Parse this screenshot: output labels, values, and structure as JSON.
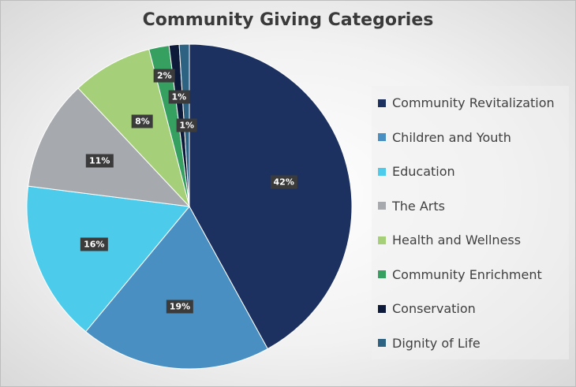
{
  "chart_data": {
    "type": "pie",
    "title": "Community Giving Categories",
    "legend_position": "right",
    "slices": [
      {
        "name": "Community Revitalization",
        "value": 42,
        "label": "42%",
        "color": "#1c3160"
      },
      {
        "name": "Children and Youth",
        "value": 19,
        "label": "19%",
        "color": "#4a8fc2"
      },
      {
        "name": "Education",
        "value": 16,
        "label": "16%",
        "color": "#4dcbea"
      },
      {
        "name": "The Arts",
        "value": 11,
        "label": "11%",
        "color": "#a6a9ae"
      },
      {
        "name": "Health and Wellness",
        "value": 8,
        "label": "8%",
        "color": "#a5cf78"
      },
      {
        "name": "Community Enrichment",
        "value": 2,
        "label": "2%",
        "color": "#35a060"
      },
      {
        "name": "Conservation",
        "value": 1,
        "label": "1%",
        "color": "#0d1a3a"
      },
      {
        "name": "Dignity of Life",
        "value": 1,
        "label": "1%",
        "color": "#2d6282"
      }
    ]
  }
}
